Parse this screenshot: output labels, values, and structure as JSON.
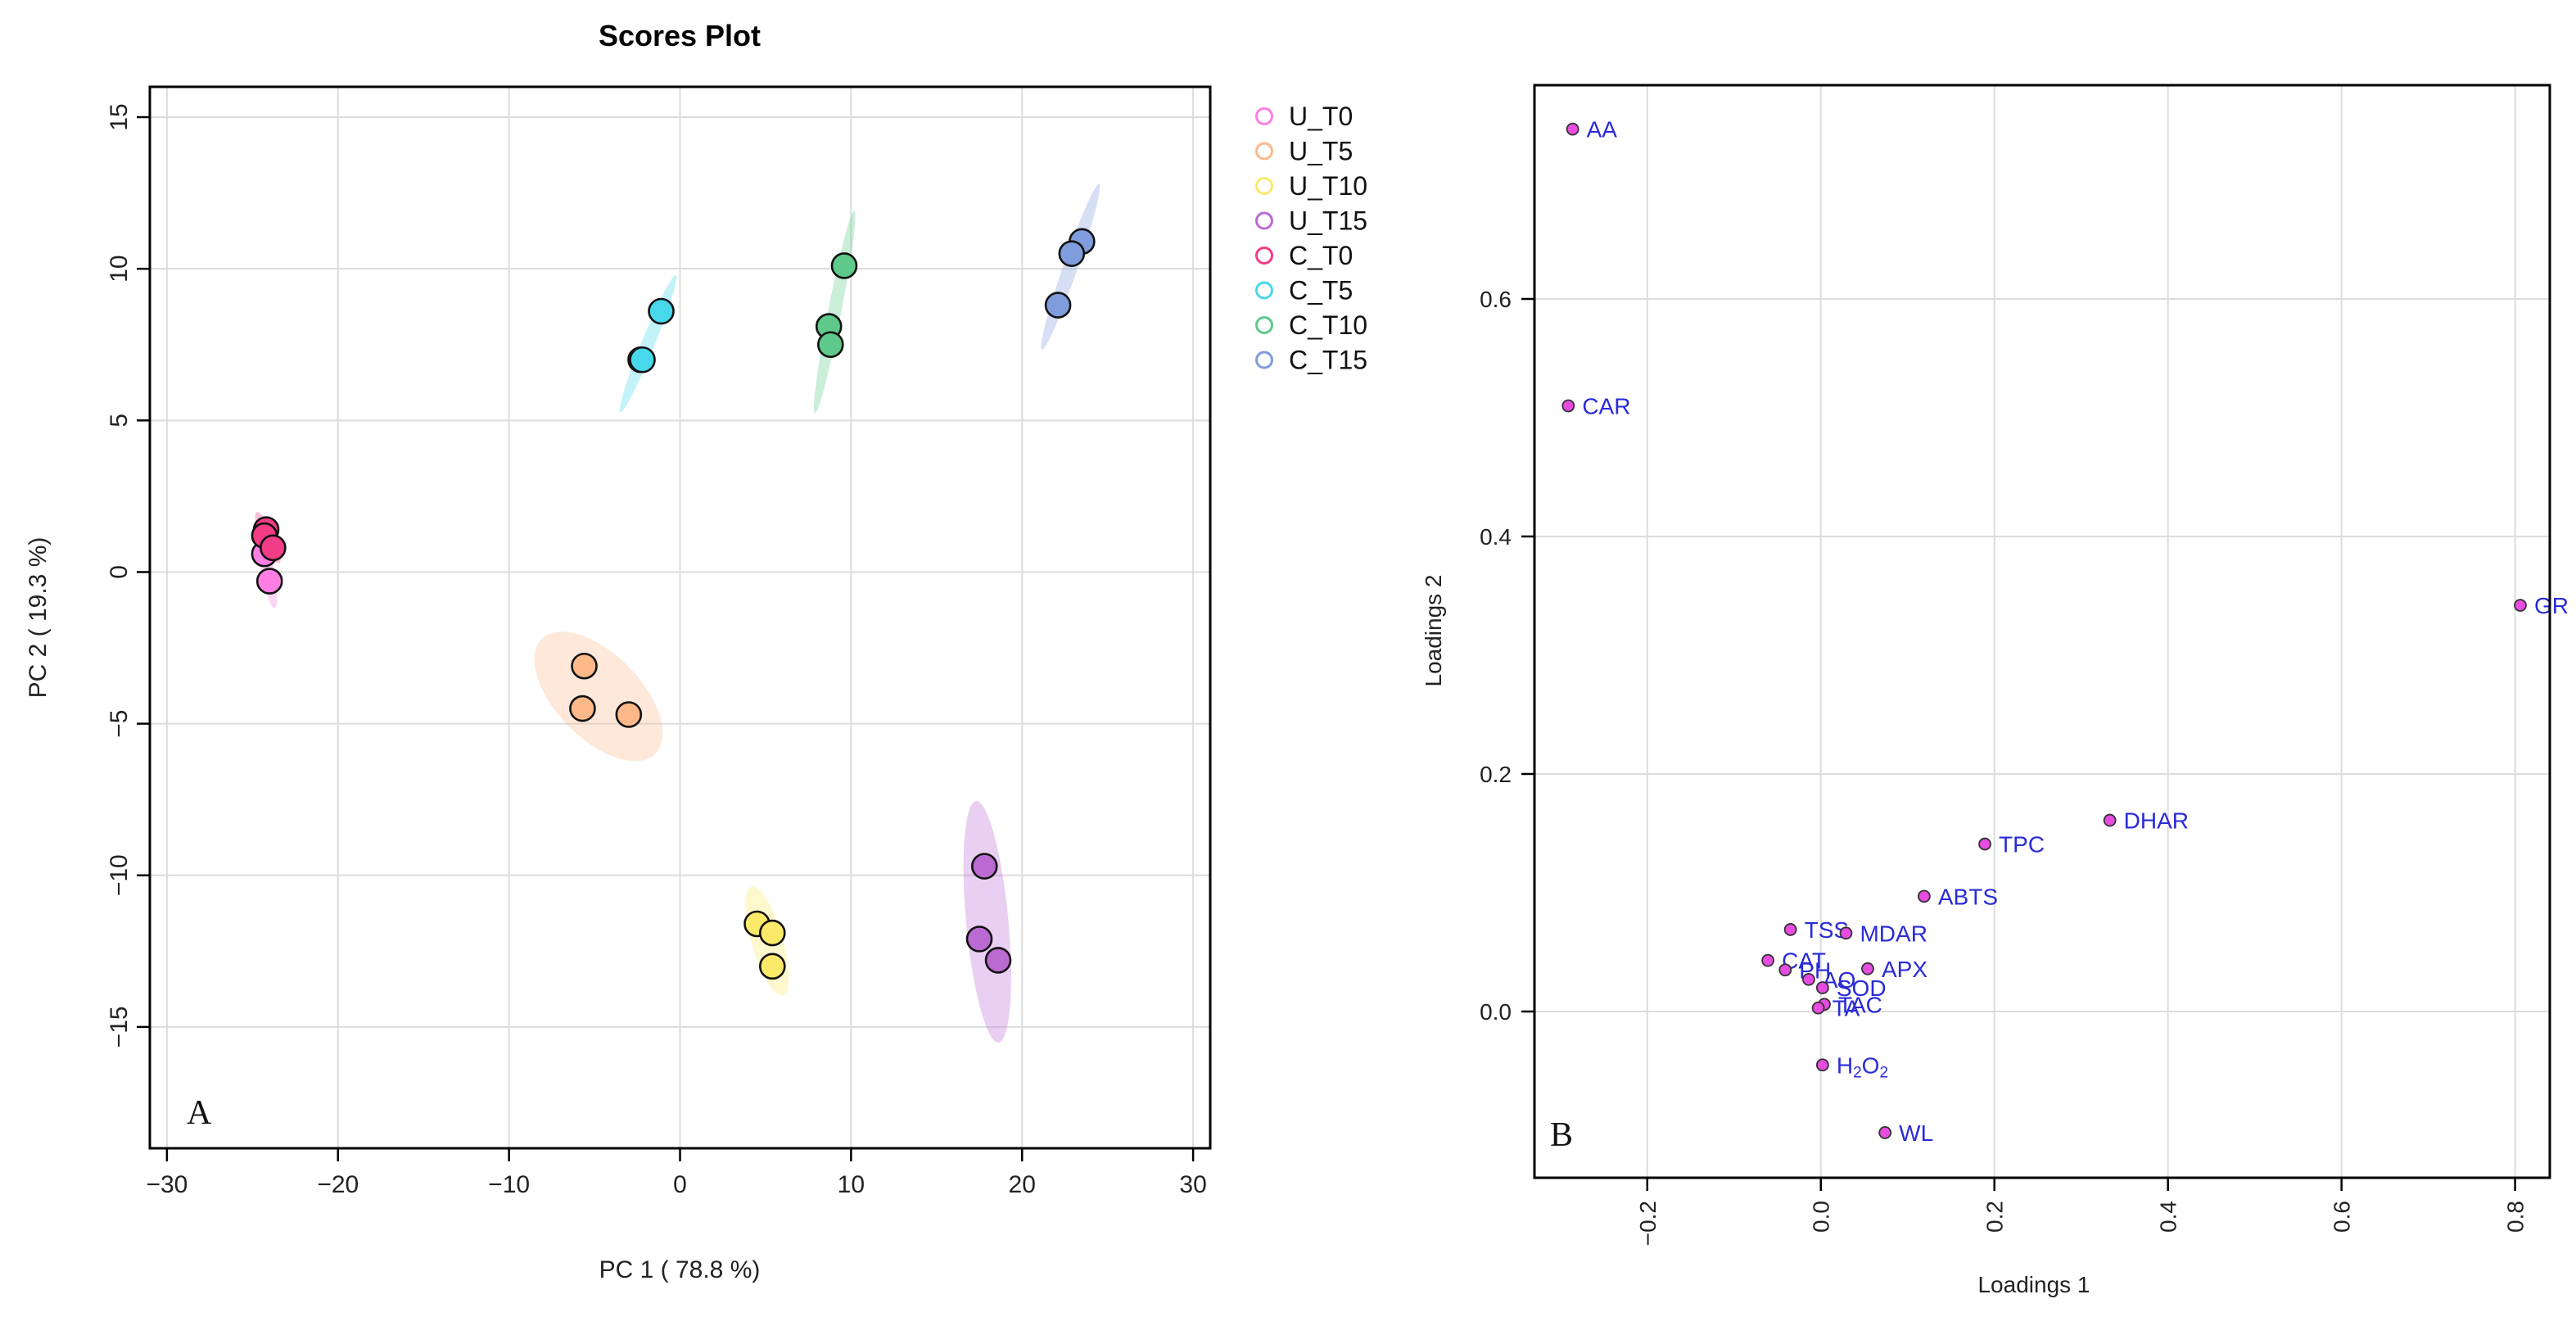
{
  "panel_a_letter": "A",
  "panel_b_letter": "B",
  "colors": {
    "U_T0": "#ff7ee3",
    "U_T5": "#fbb98a",
    "U_T10": "#fbe96a",
    "U_T15": "#bb6ad2",
    "C_T0": "#f33c86",
    "C_T5": "#48d8ec",
    "C_T10": "#5ec98a",
    "C_T15": "#7f9cdc",
    "loading_point": "#e64ce0",
    "loading_label": "#2a2ad8"
  },
  "chart_data": [
    {
      "id": "scores",
      "type": "scatter",
      "title": "Scores Plot",
      "xlabel": "PC 1 ( 78.8 %)",
      "ylabel": "PC 2 ( 19.3 %)",
      "xlim": [
        -31,
        31
      ],
      "ylim": [
        -19,
        16
      ],
      "xticks": [
        -30,
        -20,
        -10,
        0,
        10,
        20,
        30
      ],
      "yticks": [
        -15,
        -10,
        -5,
        0,
        5,
        10,
        15
      ],
      "xtick_labels": [
        "−30",
        "−20",
        "−10",
        "0",
        "10",
        "20",
        "30"
      ],
      "ytick_labels": [
        "−15",
        "−10",
        "−5",
        "0",
        "5",
        "10",
        "15"
      ],
      "grid": true,
      "legend_position": "right, outside plot",
      "series": [
        {
          "name": "U_T0",
          "points": [
            [
              -24.3,
              0.6
            ],
            [
              -24.0,
              -0.3
            ]
          ]
        },
        {
          "name": "U_T5",
          "points": [
            [
              -5.6,
              -3.1
            ],
            [
              -5.7,
              -4.5
            ],
            [
              -3.0,
              -4.7
            ]
          ]
        },
        {
          "name": "U_T10",
          "points": [
            [
              4.5,
              -11.6
            ],
            [
              5.4,
              -11.9
            ],
            [
              5.4,
              -13.0
            ]
          ]
        },
        {
          "name": "U_T15",
          "points": [
            [
              17.8,
              -9.7
            ],
            [
              17.5,
              -12.1
            ],
            [
              18.6,
              -12.8
            ]
          ]
        },
        {
          "name": "C_T0",
          "points": [
            [
              -24.2,
              1.4
            ],
            [
              -24.3,
              1.2
            ],
            [
              -23.8,
              0.8
            ]
          ]
        },
        {
          "name": "C_T5",
          "points": [
            [
              -1.1,
              8.6
            ],
            [
              -2.3,
              7.0
            ],
            [
              -2.2,
              7.0
            ]
          ]
        },
        {
          "name": "C_T10",
          "points": [
            [
              9.6,
              10.1
            ],
            [
              8.7,
              8.1
            ],
            [
              8.8,
              7.5
            ]
          ]
        },
        {
          "name": "C_T15",
          "points": [
            [
              23.5,
              10.9
            ],
            [
              22.9,
              10.5
            ],
            [
              22.1,
              8.8
            ]
          ]
        }
      ]
    },
    {
      "id": "loadings",
      "type": "scatter",
      "title": "",
      "xlabel": "Loadings 1",
      "ylabel": "Loadings 2",
      "xlim": [
        -0.33,
        0.84
      ],
      "ylim": [
        -0.14,
        0.78
      ],
      "xticks": [
        -0.2,
        0.0,
        0.2,
        0.4,
        0.6,
        0.8
      ],
      "yticks": [
        0.0,
        0.2,
        0.4,
        0.6
      ],
      "xtick_labels": [
        "−0.2",
        "0.0",
        "0.2",
        "0.4",
        "0.6",
        "0.8"
      ],
      "ytick_labels": [
        "0.0",
        "0.2",
        "0.4",
        "0.6"
      ],
      "grid": true,
      "points": [
        {
          "label": "AA",
          "x": -0.286,
          "y": 0.743
        },
        {
          "label": "CAR",
          "x": -0.291,
          "y": 0.51
        },
        {
          "label": "GR",
          "x": 0.806,
          "y": 0.342
        },
        {
          "label": "DHAR",
          "x": 0.333,
          "y": 0.161
        },
        {
          "label": "TPC",
          "x": 0.189,
          "y": 0.141
        },
        {
          "label": "ABTS",
          "x": 0.119,
          "y": 0.097
        },
        {
          "label": "TSS",
          "x": -0.035,
          "y": 0.069
        },
        {
          "label": "MDAR",
          "x": 0.029,
          "y": 0.066
        },
        {
          "label": "CAT",
          "x": -0.061,
          "y": 0.043
        },
        {
          "label": "PH",
          "x": -0.041,
          "y": 0.035
        },
        {
          "label": "APX",
          "x": 0.054,
          "y": 0.036
        },
        {
          "label": "AO",
          "x": -0.014,
          "y": 0.027
        },
        {
          "label": "SOD",
          "x": 0.002,
          "y": 0.02
        },
        {
          "label": "TAC",
          "x": 0.004,
          "y": 0.006
        },
        {
          "label": "TA",
          "x": -0.003,
          "y": 0.003
        },
        {
          "label": "H2O2",
          "x": 0.002,
          "y": -0.045
        },
        {
          "label": "WL",
          "x": 0.074,
          "y": -0.102
        }
      ]
    }
  ]
}
